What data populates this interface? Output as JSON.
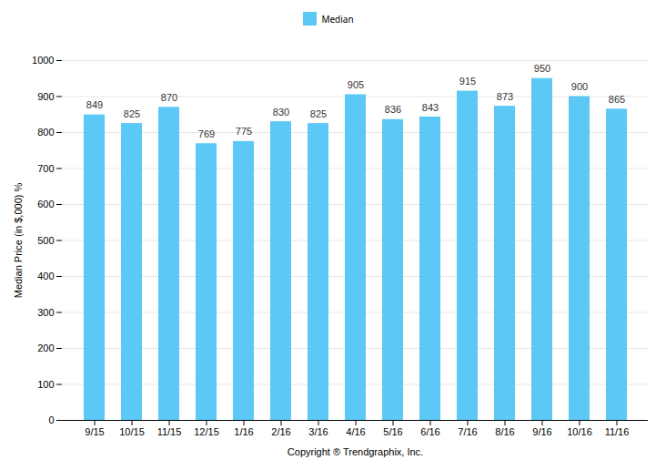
{
  "chart_data": {
    "type": "bar",
    "categories": [
      "9/15",
      "10/15",
      "11/15",
      "12/15",
      "1/16",
      "2/16",
      "3/16",
      "4/16",
      "5/16",
      "6/16",
      "7/16",
      "8/16",
      "9/16",
      "10/16",
      "11/16"
    ],
    "series": [
      {
        "name": "Median",
        "color": "#5BC8F5",
        "values": [
          849,
          825,
          870,
          769,
          775,
          830,
          825,
          905,
          836,
          843,
          915,
          873,
          950,
          900,
          865
        ]
      }
    ],
    "xlabel": "Copyright ® Trendgraphix, Inc.",
    "ylabel": "Median Price (in $,000) %",
    "ylim": [
      0,
      1000
    ],
    "yticks": [
      0,
      100,
      200,
      300,
      400,
      500,
      600,
      700,
      800,
      900,
      1000
    ],
    "grid": true,
    "legend": "top",
    "data_labels": true
  }
}
